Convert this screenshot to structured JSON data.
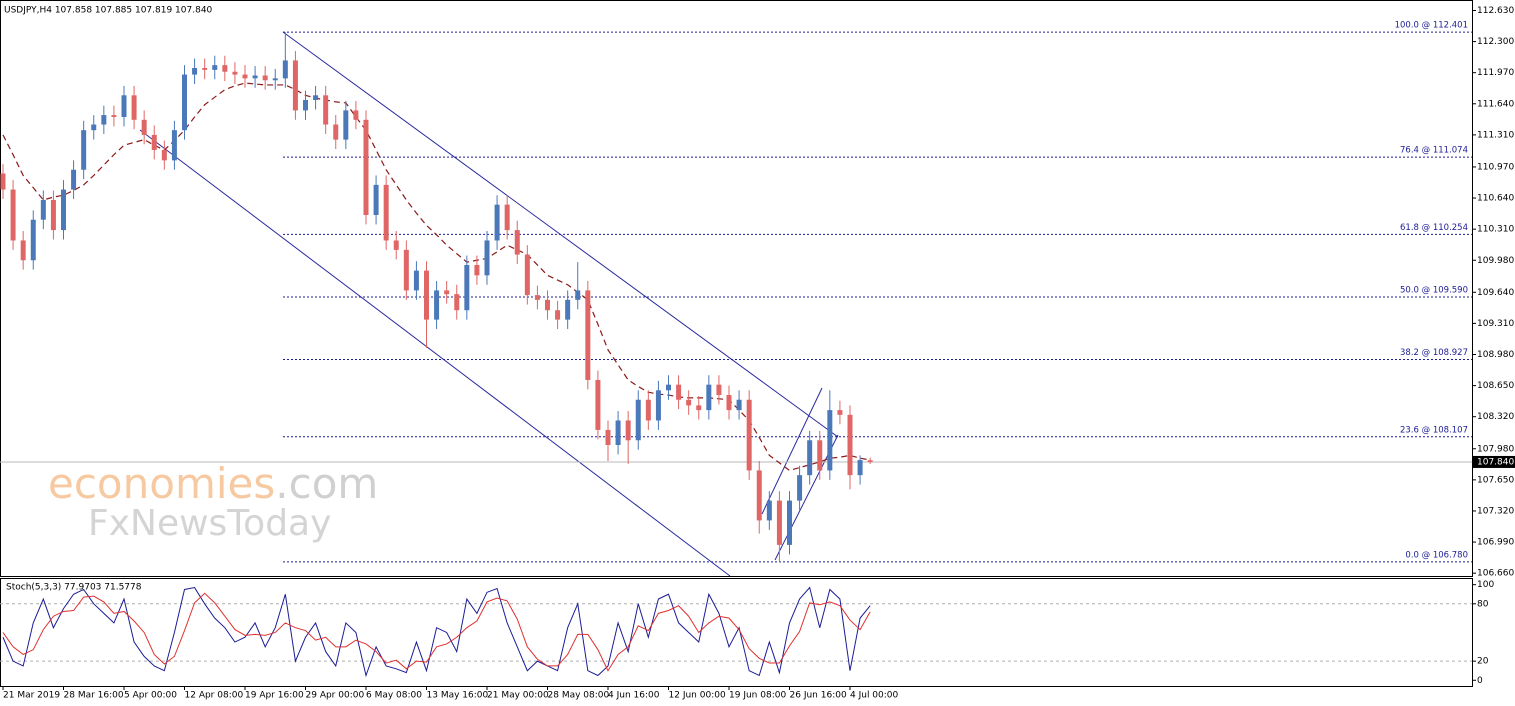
{
  "chart_data": [
    {
      "type": "candlestick",
      "title": "USDJPY,H4 107.858 107.885 107.819 107.840",
      "categories": [
        "21 Mar 2019",
        null,
        null,
        null,
        null,
        null,
        "28 Mar 16:00",
        null,
        null,
        null,
        null,
        null,
        "5 Apr 00:00",
        null,
        null,
        null,
        null,
        null,
        "12 Apr 08:00",
        null,
        null,
        null,
        null,
        null,
        "19 Apr 16:00",
        null,
        null,
        null,
        null,
        null,
        "29 Apr 00:00",
        null,
        null,
        null,
        null,
        null,
        "6 May 08:00",
        null,
        null,
        null,
        null,
        null,
        "13 May 16:00",
        null,
        null,
        null,
        null,
        null,
        "21 May 00:00",
        null,
        null,
        null,
        null,
        null,
        "28 May 08:00",
        null,
        null,
        null,
        null,
        null,
        "4 Jun 16:00",
        null,
        null,
        null,
        null,
        null,
        "12 Jun 00:00",
        null,
        null,
        null,
        null,
        null,
        "19 Jun 08:00",
        null,
        null,
        null,
        null,
        null,
        "26 Jun 16:00",
        null,
        null,
        null,
        null,
        null,
        "4 Jul 00:00",
        null,
        null
      ],
      "open": [
        110.9,
        110.73,
        110.19,
        109.98,
        110.41,
        110.62,
        110.3,
        110.73,
        110.94,
        111.36,
        111.42,
        111.52,
        111.5,
        111.73,
        111.47,
        111.31,
        111.15,
        111.04,
        111.36,
        111.95,
        112.02,
        112.0,
        112.05,
        111.98,
        111.95,
        111.91,
        111.94,
        111.89,
        111.91,
        112.1,
        111.57,
        111.68,
        111.73,
        111.42,
        111.26,
        111.57,
        111.47,
        110.46,
        110.78,
        110.19,
        110.09,
        109.66,
        109.87,
        109.35,
        109.66,
        109.62,
        109.45,
        109.93,
        109.82,
        110.19,
        110.57,
        110.3,
        110.04,
        109.61,
        109.56,
        109.45,
        109.35,
        109.56,
        109.66,
        108.71,
        108.18,
        108.02,
        108.28,
        108.07,
        108.5,
        108.28,
        108.6,
        108.66,
        108.5,
        108.44,
        108.39,
        108.66,
        108.55,
        108.39,
        108.5,
        107.75,
        107.22,
        107.43,
        106.96,
        107.43,
        107.7,
        108.07,
        107.75,
        108.39,
        108.34,
        107.7,
        107.858
      ],
      "high": [
        111.0,
        110.83,
        110.29,
        110.51,
        110.72,
        110.72,
        110.83,
        111.04,
        111.46,
        111.52,
        111.62,
        111.62,
        111.83,
        111.83,
        111.57,
        111.41,
        111.25,
        111.46,
        112.05,
        112.12,
        112.12,
        112.15,
        112.15,
        112.08,
        112.05,
        112.04,
        112.04,
        112.01,
        112.4,
        112.2,
        111.78,
        111.83,
        111.83,
        111.52,
        111.67,
        111.67,
        111.57,
        110.88,
        110.88,
        110.29,
        110.19,
        109.97,
        109.97,
        109.76,
        109.76,
        109.72,
        110.03,
        110.03,
        110.29,
        110.67,
        110.67,
        110.4,
        110.14,
        109.71,
        109.66,
        109.55,
        109.66,
        109.96,
        109.76,
        108.81,
        108.28,
        108.38,
        108.38,
        108.6,
        108.6,
        108.7,
        108.76,
        108.76,
        108.6,
        108.54,
        108.76,
        108.76,
        108.65,
        108.6,
        108.6,
        107.85,
        107.53,
        107.53,
        107.53,
        107.8,
        108.17,
        108.17,
        108.6,
        108.49,
        108.44,
        107.91,
        107.885
      ],
      "low": [
        110.63,
        110.09,
        109.88,
        109.88,
        110.31,
        110.2,
        110.2,
        110.63,
        110.84,
        111.26,
        111.32,
        111.4,
        111.4,
        111.37,
        111.21,
        111.05,
        110.94,
        110.94,
        111.26,
        111.85,
        111.9,
        111.9,
        111.88,
        111.85,
        111.81,
        111.81,
        111.79,
        111.79,
        111.81,
        111.47,
        111.47,
        111.58,
        111.32,
        111.16,
        111.16,
        111.37,
        110.36,
        110.36,
        110.09,
        109.99,
        109.56,
        109.56,
        109.05,
        109.25,
        109.52,
        109.35,
        109.35,
        109.72,
        109.72,
        110.09,
        110.2,
        109.94,
        109.51,
        109.46,
        109.35,
        109.25,
        109.25,
        109.46,
        108.61,
        108.08,
        107.85,
        107.92,
        107.82,
        107.97,
        108.18,
        108.18,
        108.5,
        108.4,
        108.34,
        108.29,
        108.29,
        108.45,
        108.29,
        108.29,
        107.65,
        107.08,
        107.12,
        106.78,
        106.86,
        107.33,
        107.6,
        107.65,
        107.65,
        108.24,
        107.55,
        107.6,
        107.819
      ],
      "close": [
        110.73,
        110.19,
        109.98,
        110.41,
        110.62,
        110.3,
        110.73,
        110.94,
        111.36,
        111.42,
        111.52,
        111.5,
        111.73,
        111.47,
        111.31,
        111.15,
        111.04,
        111.36,
        111.95,
        112.02,
        112.0,
        112.05,
        111.98,
        111.95,
        111.91,
        111.94,
        111.89,
        111.91,
        112.1,
        111.57,
        111.68,
        111.73,
        111.42,
        111.26,
        111.57,
        111.47,
        110.46,
        110.78,
        110.19,
        110.09,
        109.66,
        109.87,
        109.35,
        109.66,
        109.62,
        109.45,
        109.93,
        109.82,
        110.19,
        110.57,
        110.3,
        110.04,
        109.61,
        109.56,
        109.45,
        109.35,
        109.56,
        109.66,
        108.71,
        108.18,
        108.02,
        108.28,
        108.07,
        108.5,
        108.28,
        108.6,
        108.66,
        108.5,
        108.44,
        108.39,
        108.66,
        108.55,
        108.39,
        108.5,
        107.75,
        107.22,
        107.43,
        106.96,
        107.43,
        107.7,
        108.07,
        107.75,
        108.39,
        108.34,
        107.7,
        107.86,
        107.84
      ],
      "up_color": "#4a78b8",
      "down_color": "#e06666",
      "moving_average": {
        "color": "#8b1a1a",
        "values": [
          111.31,
          111.1,
          110.88,
          110.75,
          110.62,
          110.65,
          110.67,
          110.72,
          110.78,
          110.88,
          110.99,
          111.1,
          111.2,
          111.23,
          111.26,
          111.2,
          111.15,
          111.25,
          111.36,
          111.5,
          111.63,
          111.71,
          111.79,
          111.83,
          111.86,
          111.85,
          111.84,
          111.84,
          111.84,
          111.79,
          111.73,
          111.7,
          111.68,
          111.66,
          111.65,
          111.5,
          111.36,
          111.15,
          110.94,
          110.78,
          110.62,
          110.48,
          110.35,
          110.25,
          110.14,
          110.05,
          109.96,
          109.98,
          110.0,
          110.07,
          110.14,
          110.09,
          110.04,
          109.93,
          109.82,
          109.77,
          109.72,
          109.64,
          109.56,
          109.3,
          109.03,
          108.87,
          108.71,
          108.64,
          108.58,
          108.56,
          108.55,
          108.53,
          108.52,
          108.52,
          108.52,
          108.51,
          108.5,
          108.39,
          108.28,
          108.1,
          107.91,
          107.83,
          107.75,
          107.78,
          107.81,
          107.84,
          107.88,
          107.89,
          107.91,
          107.88,
          107.86
        ]
      },
      "ylim": [
        106.63,
        112.72
      ],
      "yticks": [
        {
          "value": 112.63,
          "label": "112.630"
        },
        {
          "value": 112.3,
          "label": "112.300"
        },
        {
          "value": 111.97,
          "label": "111.970"
        },
        {
          "value": 111.64,
          "label": "111.640"
        },
        {
          "value": 111.31,
          "label": "111.310"
        },
        {
          "value": 110.97,
          "label": "110.970"
        },
        {
          "value": 110.64,
          "label": "110.640"
        },
        {
          "value": 110.31,
          "label": "110.310"
        },
        {
          "value": 109.98,
          "label": "109.980"
        },
        {
          "value": 109.64,
          "label": "109.640"
        },
        {
          "value": 109.31,
          "label": "109.310"
        },
        {
          "value": 108.98,
          "label": "108.980"
        },
        {
          "value": 108.65,
          "label": "108.650"
        },
        {
          "value": 108.32,
          "label": "108.320"
        },
        {
          "value": 107.98,
          "label": "107.980"
        },
        {
          "value": 107.65,
          "label": "107.650"
        },
        {
          "value": 107.32,
          "label": "107.320"
        },
        {
          "value": 106.99,
          "label": "106.990"
        },
        {
          "value": 106.66,
          "label": "106.660"
        }
      ],
      "levels": [
        {
          "value": 112.401,
          "label": "100.0 @ 112.401"
        },
        {
          "value": 111.074,
          "label": "76.4 @ 111.074"
        },
        {
          "value": 110.254,
          "label": "61.8 @ 110.254"
        },
        {
          "value": 109.59,
          "label": "50.0 @ 109.590"
        },
        {
          "value": 108.927,
          "label": "38.2 @ 108.927"
        },
        {
          "value": 108.107,
          "label": "23.6 @ 108.107"
        },
        {
          "value": 106.78,
          "label": "0.0 @ 106.780"
        }
      ],
      "level_color": "#1c1c96",
      "last_price": {
        "value": 107.84,
        "label": "107.840"
      },
      "watermark": {
        "brand": "economies",
        "domain": ".com",
        "sub": "FxNewsToday"
      }
    },
    {
      "type": "line",
      "title": "Stoch(5,3,3) 77.9703 71.5778",
      "series": [
        {
          "color": "#1c1c96",
          "values": [
            45,
            20,
            15,
            60,
            85,
            55,
            75,
            90,
            95,
            80,
            70,
            60,
            85,
            40,
            25,
            15,
            10,
            50,
            95,
            97,
            80,
            65,
            55,
            40,
            45,
            60,
            35,
            55,
            90,
            20,
            45,
            60,
            30,
            15,
            60,
            50,
            5,
            35,
            15,
            12,
            8,
            40,
            10,
            55,
            50,
            30,
            85,
            70,
            92,
            96,
            60,
            35,
            10,
            20,
            15,
            10,
            55,
            80,
            10,
            5,
            15,
            60,
            30,
            80,
            45,
            85,
            90,
            60,
            50,
            40,
            90,
            70,
            35,
            55,
            10,
            5,
            40,
            8,
            60,
            85,
            97,
            55,
            95,
            85,
            10,
            65,
            77.9703
          ]
        },
        {
          "color": "#e03030",
          "values": [
            50,
            35,
            27,
            32,
            53,
            67,
            72,
            73,
            87,
            88,
            82,
            70,
            72,
            62,
            50,
            27,
            17,
            25,
            52,
            81,
            91,
            81,
            67,
            53,
            47,
            48,
            47,
            50,
            60,
            55,
            52,
            42,
            45,
            35,
            35,
            42,
            38,
            30,
            18,
            21,
            12,
            20,
            19,
            35,
            38,
            45,
            55,
            62,
            82,
            86,
            83,
            64,
            35,
            22,
            15,
            15,
            27,
            48,
            48,
            32,
            10,
            27,
            35,
            57,
            52,
            70,
            73,
            78,
            67,
            50,
            60,
            67,
            65,
            53,
            33,
            23,
            18,
            18,
            36,
            51,
            81,
            79,
            82,
            78,
            63,
            53,
            71.5778
          ]
        }
      ],
      "ylim": [
        -6,
        107
      ],
      "yticks": [
        100,
        80,
        20,
        0
      ],
      "levels": [
        80,
        20
      ]
    }
  ]
}
